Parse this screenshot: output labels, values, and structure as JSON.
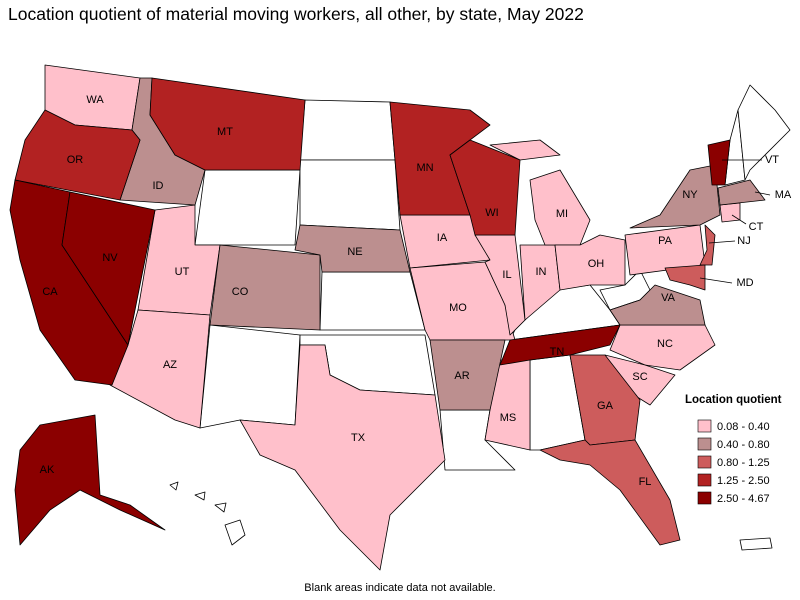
{
  "title": "Location quotient of material moving workers, all other, by state, May 2022",
  "legend": {
    "title": "Location quotient",
    "items": [
      {
        "label": "0.08 - 0.40",
        "color": "#ffc0cb",
        "states": [
          "WA",
          "UT",
          "AZ",
          "TX",
          "IA",
          "MO",
          "IL",
          "IN",
          "MI",
          "OH",
          "MS",
          "PA",
          "NC",
          "SC",
          "CT"
        ]
      },
      {
        "label": "0.40 - 0.80",
        "color": "#bc8f8f",
        "states": [
          "ID",
          "CO",
          "NE",
          "AR",
          "NY",
          "VA",
          "MA"
        ]
      },
      {
        "label": "0.80 - 1.25",
        "color": "#cd5c5c",
        "states": [
          "GA",
          "FL",
          "NJ",
          "MD"
        ]
      },
      {
        "label": "1.25 - 2.50",
        "color": "#b22222",
        "states": [
          "OR",
          "MT",
          "MN",
          "WI"
        ]
      },
      {
        "label": "2.50 - 4.67",
        "color": "#8b0000",
        "states": [
          "CA",
          "NV",
          "TN",
          "AK",
          "VT"
        ]
      }
    ]
  },
  "note": "Blank areas indicate data not available."
}
